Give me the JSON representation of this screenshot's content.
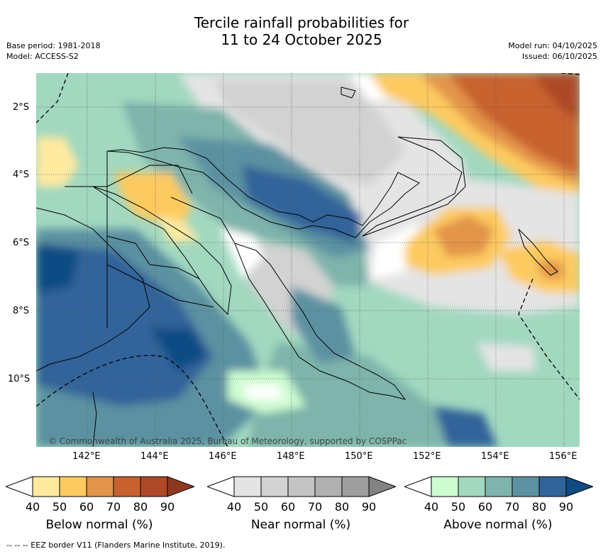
{
  "title_line1": "Tercile rainfall probabilities for",
  "title_line2": "11 to 24 October 2025",
  "base_period": "Base period: 1981-2018",
  "model": "Model: ACCESS-S2",
  "model_run": "Model run: 04/10/2025",
  "issued": "Issued: 06/10/2025",
  "lat_labels": [
    "2°S",
    "4°S",
    "6°S",
    "8°S",
    "10°S"
  ],
  "lon_labels": [
    "142°E",
    "144°E",
    "146°E",
    "148°E",
    "150°E",
    "152°E",
    "154°E",
    "156°E"
  ],
  "copyright": "© Commonwealth of Australia 2025, Bureau of Meteorology, supported by COSPPac",
  "footer": "--  --  -- EEZ border V11 (Flanders Marine Institute, 2019).",
  "colorbars": [
    {
      "title": "Below normal (%)",
      "ticks": [
        "40",
        "50",
        "60",
        "70",
        "80",
        "90"
      ],
      "colors": [
        "#ffffff",
        "#ffeaa0",
        "#fdca60",
        "#e2944a",
        "#c8622e",
        "#ae4828",
        "#8f3820"
      ]
    },
    {
      "title": "Near normal (%)",
      "ticks": [
        "40",
        "50",
        "60",
        "70",
        "80",
        "90"
      ],
      "colors": [
        "#ffffff",
        "#e4e4e4",
        "#d2d2d2",
        "#c4c4c4",
        "#b0b0b0",
        "#9e9e9e",
        "#838383"
      ]
    },
    {
      "title": "Above normal (%)",
      "ticks": [
        "40",
        "50",
        "60",
        "70",
        "80",
        "90"
      ],
      "colors": [
        "#ffffff",
        "#ccfcd0",
        "#a2d8bf",
        "#7eb4ab",
        "#5b91a1",
        "#30649a",
        "#114b84"
      ]
    }
  ]
}
